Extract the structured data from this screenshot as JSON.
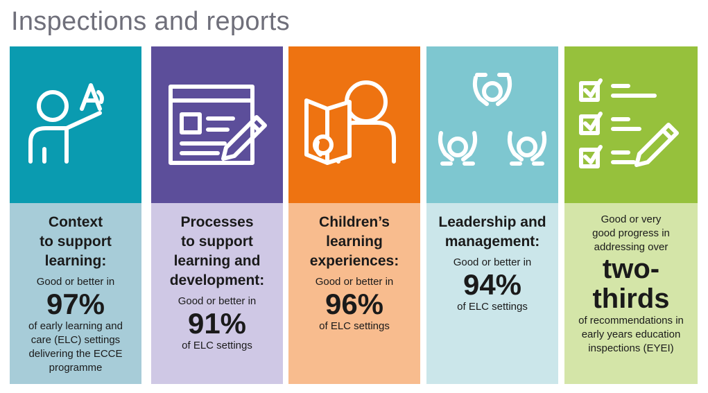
{
  "page": {
    "title": "Inspections and reports"
  },
  "cards": [
    {
      "icon": "teacher-writing-icon",
      "heading": [
        "Context",
        "to support",
        "learning:"
      ],
      "pre": "Good or better in",
      "value": "97%",
      "post": [
        "of early learning and",
        "care (ELC) settings",
        "delivering the ECCE",
        "programme"
      ]
    },
    {
      "icon": "document-pencil-icon",
      "heading": [
        "Processes",
        "to support",
        "learning and",
        "development:"
      ],
      "pre": "Good or better in",
      "value": "91%",
      "post": [
        "of ELC settings"
      ]
    },
    {
      "icon": "child-reading-icon",
      "heading": [
        "Children’s",
        "learning",
        "experiences:"
      ],
      "pre": "Good or better in",
      "value": "96%",
      "post": [
        "of ELC settings"
      ]
    },
    {
      "icon": "people-collaboration-icon",
      "heading": [
        "Leadership and",
        "management:"
      ],
      "pre": "Good or better in",
      "value": "94%",
      "post": [
        "of ELC settings"
      ]
    },
    {
      "icon": "checklist-icon",
      "pre_lines": [
        "Good or very",
        "good progress in",
        "addressing over"
      ],
      "value_lines": [
        "two-",
        "thirds"
      ],
      "post": [
        "of recommendations in",
        "early years education",
        "inspections (EYEI)"
      ]
    }
  ],
  "colors": {
    "card1_top": "#0a9bb0",
    "card1_bottom": "#a7ccd8",
    "card2_top": "#5c4e9a",
    "card2_bottom": "#cfc8e5",
    "card3_top": "#ee7311",
    "card3_bottom": "#f8bc8e",
    "card4_top": "#7ec7d0",
    "card4_bottom": "#cbe6ea",
    "card5_top": "#96c13c",
    "card5_bottom": "#d4e5a8"
  }
}
